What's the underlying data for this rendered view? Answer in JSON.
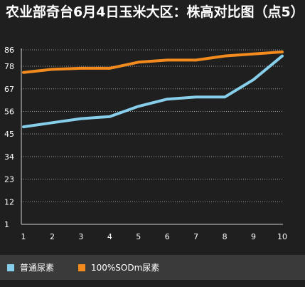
{
  "chart_data": {
    "type": "line",
    "title": "农业部奇台6月4日玉米大区：株高对比图（点5）",
    "x": [
      1,
      2,
      3,
      4,
      5,
      6,
      7,
      8,
      9,
      10
    ],
    "x_tick_labels": [
      "1",
      "2",
      "3",
      "4",
      "5",
      "6",
      "7",
      "8",
      "9",
      "10"
    ],
    "y_tick_labels": [
      "1",
      "12",
      "23",
      "34",
      "45",
      "56",
      "67",
      "78",
      "86"
    ],
    "y_ticks": [
      1,
      12,
      23,
      34,
      45,
      56,
      67,
      78,
      86
    ],
    "ylim": [
      1,
      86
    ],
    "grid": true,
    "legend_position": "bottom-left",
    "series": [
      {
        "name": "普通尿素",
        "color": "#87ceeb",
        "values": [
          48.5,
          50.5,
          52.5,
          53.5,
          58.5,
          62,
          63,
          63,
          71.5,
          83
        ]
      },
      {
        "name": "100%SODm尿素",
        "color": "#f28a1e",
        "values": [
          75,
          76.5,
          77,
          77,
          80,
          81,
          81,
          83,
          84,
          85
        ]
      }
    ]
  }
}
